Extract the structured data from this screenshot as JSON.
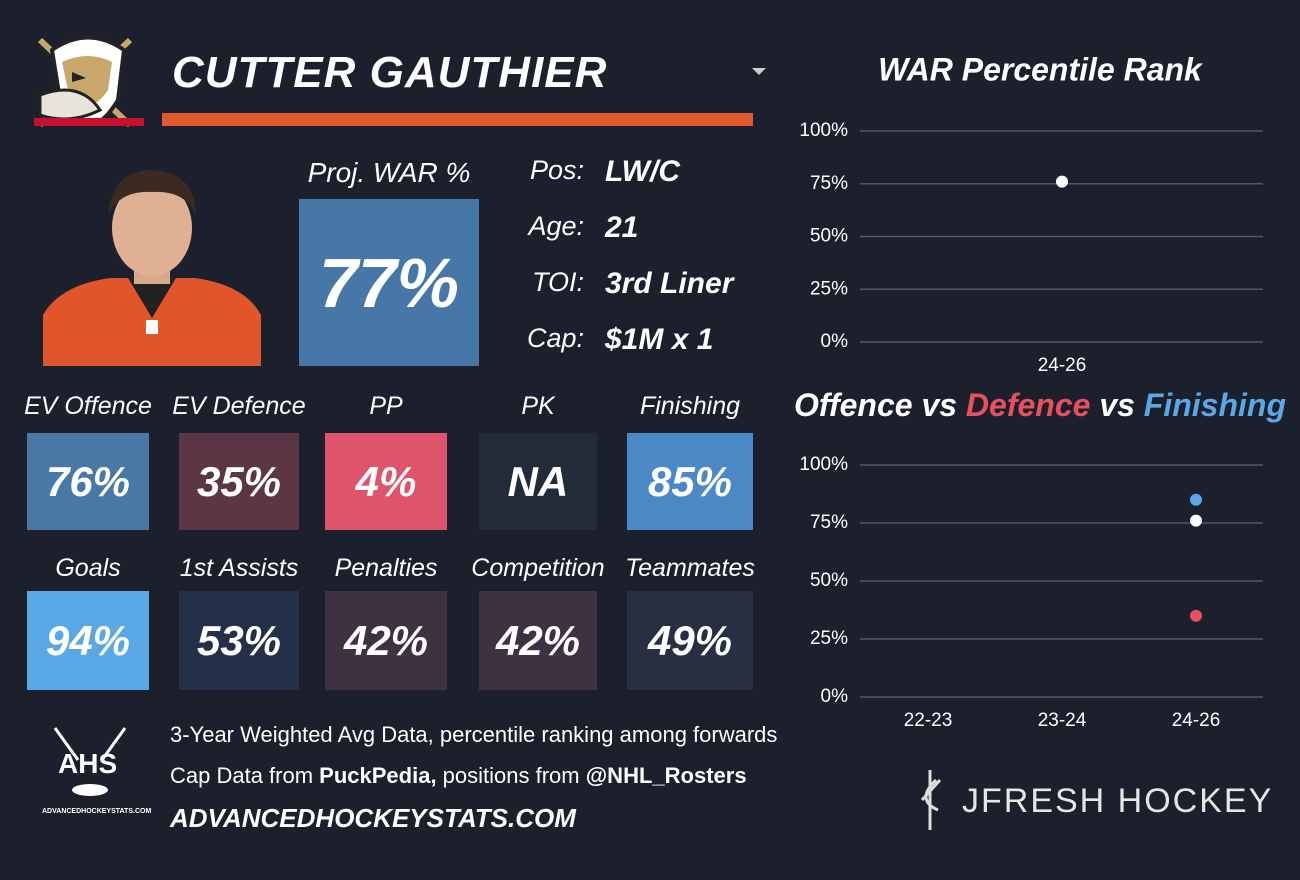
{
  "player": {
    "name": "CUTTER GAUTHIER"
  },
  "proj_war": {
    "label": "Proj. WAR %",
    "value": "77%",
    "color": "#4677a6"
  },
  "info": [
    {
      "label": "Pos:",
      "value": "LW/C"
    },
    {
      "label": "Age:",
      "value": "21"
    },
    {
      "label": "TOI:",
      "value": "3rd Liner"
    },
    {
      "label": "Cap:",
      "value": "$1M x 1"
    }
  ],
  "tiles": [
    [
      {
        "label": "EV Offence",
        "value": "76%",
        "color": "#4a78a6"
      },
      {
        "label": "EV Defence",
        "value": "35%",
        "color": "#5c3644"
      },
      {
        "label": "PP",
        "value": "4%",
        "color": "#e0546b"
      },
      {
        "label": "PK",
        "value": "NA",
        "color": "#222b38"
      },
      {
        "label": "Finishing",
        "value": "85%",
        "color": "#4a88c6"
      }
    ],
    [
      {
        "label": "Goals",
        "value": "94%",
        "color": "#5aa7e6"
      },
      {
        "label": "1st Assists",
        "value": "53%",
        "color": "#24304a"
      },
      {
        "label": "Penalties",
        "value": "42%",
        "color": "#3e3142"
      },
      {
        "label": "Competition",
        "value": "42%",
        "color": "#3e3142"
      },
      {
        "label": "Teammates",
        "value": "49%",
        "color": "#263042"
      }
    ]
  ],
  "footer": {
    "line1": "3-Year Weighted Avg Data, percentile ranking among forwards",
    "line2": [
      "Cap Data from ",
      "PuckPedia,",
      " positions from ",
      "@NHL_Rosters"
    ],
    "site": "ADVANCEDHOCKEYSTATS.COM"
  },
  "logos": {
    "ahs": "AHS",
    "ahs_site": "ADVANCEDHOCKEYSTATS.COM",
    "jfresh": "JFRESH HOCKEY"
  },
  "chart_data": [
    {
      "type": "scatter",
      "title": "WAR Percentile Rank",
      "categories": [
        "24-26"
      ],
      "series": [
        {
          "color": "#ffffff",
          "values": [
            76
          ]
        }
      ],
      "ylim": [
        0,
        100
      ],
      "yticks": [
        {
          "value": 0,
          "label": "0%"
        },
        {
          "value": 25,
          "label": "25%"
        },
        {
          "value": 50,
          "label": "50%"
        },
        {
          "value": 75,
          "label": "75%"
        },
        {
          "value": 100,
          "label": "100%"
        }
      ],
      "grid": true
    },
    {
      "type": "scatter",
      "title": [
        {
          "text": "Offence",
          "color": "#ffffff"
        },
        {
          "text": " vs ",
          "color": "#ffffff"
        },
        {
          "text": "Defence",
          "color": "#e8505f"
        },
        {
          "text": " vs ",
          "color": "#ffffff"
        },
        {
          "text": "Finishing",
          "color": "#5aa7e6"
        }
      ],
      "categories": [
        "22-23",
        "23-24",
        "24-26"
      ],
      "series": [
        {
          "name": "Finishing",
          "color": "#5aa7e6",
          "values": [
            null,
            null,
            85
          ]
        },
        {
          "name": "Offence",
          "color": "#ffffff",
          "values": [
            null,
            null,
            76
          ]
        },
        {
          "name": "Defence",
          "color": "#e8505f",
          "values": [
            null,
            null,
            35
          ]
        }
      ],
      "ylim": [
        0,
        100
      ],
      "yticks": [
        {
          "value": 0,
          "label": "0%"
        },
        {
          "value": 25,
          "label": "25%"
        },
        {
          "value": 50,
          "label": "50%"
        },
        {
          "value": 75,
          "label": "75%"
        },
        {
          "value": 100,
          "label": "100%"
        }
      ],
      "grid": true
    }
  ]
}
